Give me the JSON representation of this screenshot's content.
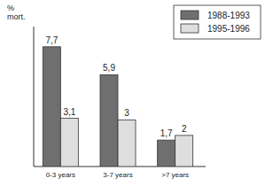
{
  "chart_data": {
    "type": "bar",
    "y_label": "% mort.",
    "categories": [
      "0-3 years",
      "3-7 years",
      ">7 years"
    ],
    "series": [
      {
        "name": "1988-1993",
        "color": "#6f6f6f",
        "values": [
          7.7,
          5.9,
          1.7
        ],
        "value_labels": [
          "7,7",
          "5,9",
          "1,7"
        ]
      },
      {
        "name": "1995-1996",
        "color": "#dedede",
        "values": [
          3.1,
          3,
          2
        ],
        "value_labels": [
          "3,1",
          "3",
          "2"
        ]
      }
    ],
    "ylim": [
      0,
      9
    ],
    "data_labels": true,
    "tick_labels": "x",
    "legend": "upper right",
    "grid": false
  }
}
